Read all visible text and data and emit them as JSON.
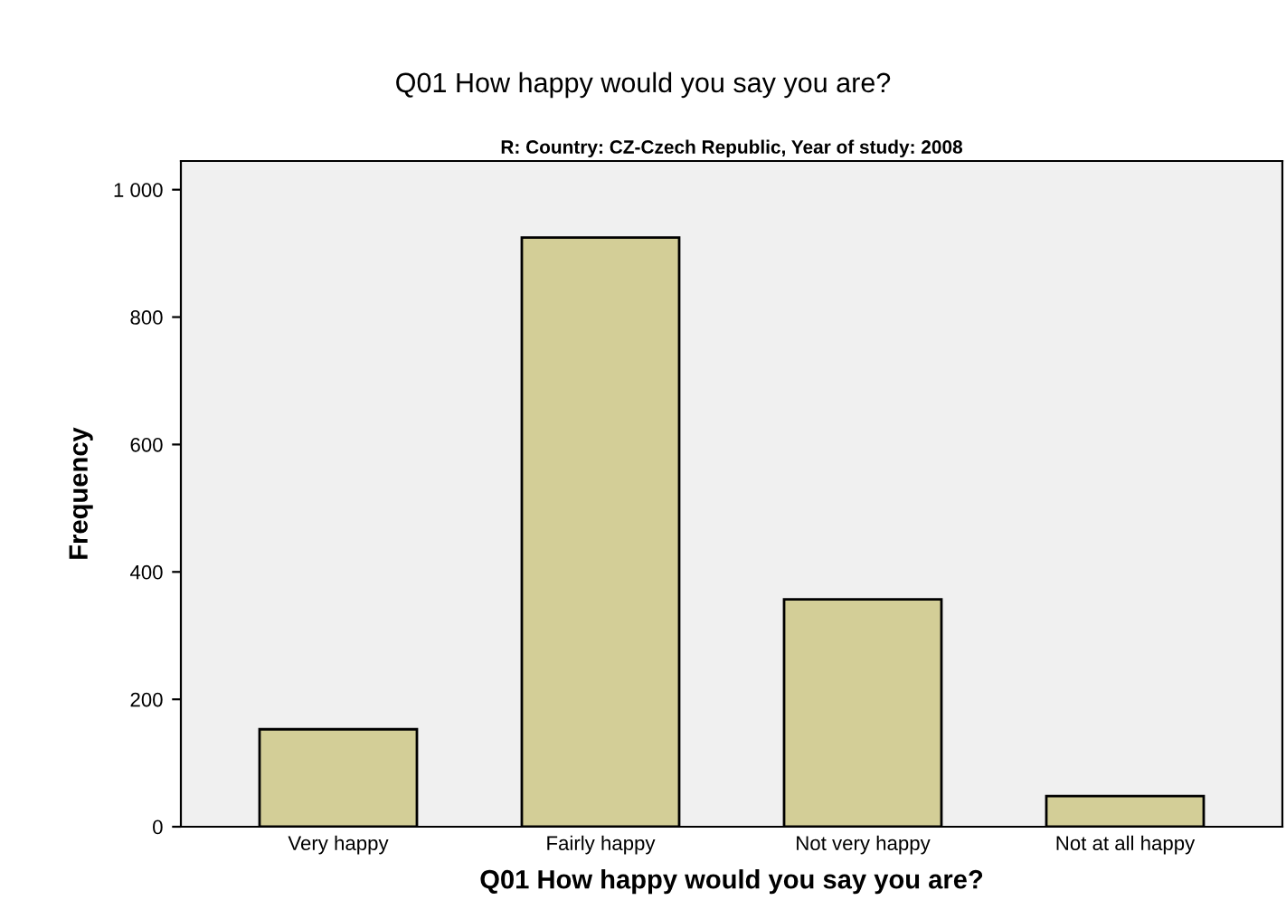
{
  "chart_data": {
    "type": "bar",
    "title": "Q01 How happy would you say you are?",
    "subtitle": "R: Country: CZ-Czech Republic, Year of study: 2008",
    "xlabel": "Q01 How happy would you say you are?",
    "ylabel": "Frequency",
    "categories": [
      "Very happy",
      "Fairly happy",
      "Not very happy",
      "Not at all happy"
    ],
    "values": [
      153,
      925,
      357,
      48
    ],
    "color": "#d3ce97",
    "ylim": [
      0,
      1045
    ],
    "yticks": [
      0,
      200,
      400,
      600,
      800,
      {
        "value": 1000,
        "label": "1 000"
      }
    ],
    "grid": false,
    "legend": false
  }
}
